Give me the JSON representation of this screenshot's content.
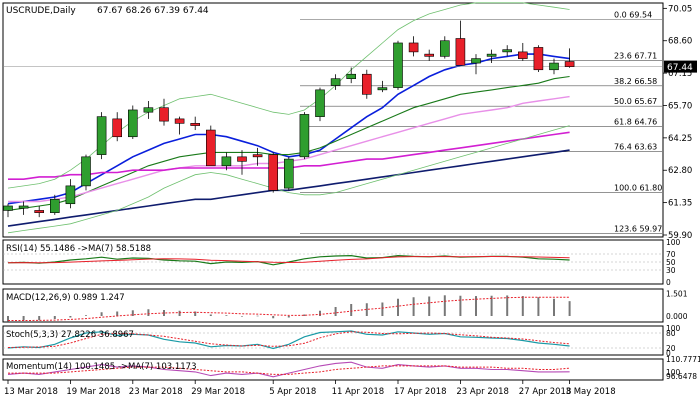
{
  "header": {
    "symbol": "USCRUDE,Daily",
    "ohlc": "67.67 68.26 67.39 67.44"
  },
  "price_axis": {
    "ticks": [
      "70.05",
      "68.60",
      "67.15",
      "65.70",
      "64.25",
      "62.80",
      "61.35",
      "59.90"
    ],
    "current_price": "67.44"
  },
  "fibonacci": [
    {
      "ratio": "0.0",
      "price": "69.54",
      "value": 69.54
    },
    {
      "ratio": "23.6",
      "price": "67.71",
      "value": 67.71
    },
    {
      "ratio": "38.2",
      "price": "66.58",
      "value": 66.58
    },
    {
      "ratio": "50.0",
      "price": "65.67",
      "value": 65.67
    },
    {
      "ratio": "61.8",
      "price": "64.76",
      "value": 64.76
    },
    {
      "ratio": "76.4",
      "price": "63.63",
      "value": 63.63
    },
    {
      "ratio": "100.0",
      "price": "61.80",
      "value": 61.8
    },
    {
      "ratio": "123.6",
      "price": "59.97",
      "value": 59.97
    }
  ],
  "x_axis": {
    "labels": [
      "13 Mar 2018",
      "19 Mar 2018",
      "23 Mar 2018",
      "29 Mar 2018",
      "5 Apr 2018",
      "11 Apr 2018",
      "17 Apr 2018",
      "23 Apr 2018",
      "27 Apr 2018",
      "3 May 2018"
    ]
  },
  "indicators": {
    "rsi": {
      "label": "RSI(14) 55.1486  ->MA(7) 58.5188",
      "levels": [
        "100",
        "70",
        "50",
        "30",
        "0"
      ]
    },
    "macd": {
      "label": "MACD(12,26,9) 0.989 1.247",
      "levels": [
        "1.501",
        "0.000"
      ]
    },
    "stoch": {
      "label": "Stoch(5,3,3) 27.8226 36.8967",
      "levels": [
        "100",
        "80",
        "20",
        "0"
      ]
    },
    "momentum": {
      "label": "Momentum(14) 100.1485  ->MA(7) 103.1173",
      "levels": [
        "110.7771",
        "100",
        "96.6478"
      ]
    }
  },
  "colors": {
    "bull": "#2f9e2f",
    "bear": "#e8202a",
    "ma_blue": "#0a1fdc",
    "ma_green": "#1a7a1a",
    "ma_magenta": "#d21fd2",
    "ma_pink": "#e890e8",
    "ma_navy": "#0f1c6e",
    "band_green": "#6fc06f"
  },
  "chart_data": {
    "type": "candlestick",
    "title": "USCRUDE,Daily",
    "ylim": [
      59.9,
      70.2
    ],
    "dates": [
      "13 Mar",
      "14 Mar",
      "15 Mar",
      "16 Mar",
      "19 Mar",
      "20 Mar",
      "21 Mar",
      "22 Mar",
      "23 Mar",
      "26 Mar",
      "27 Mar",
      "28 Mar",
      "29 Mar",
      "2 Apr",
      "3 Apr",
      "4 Apr",
      "5 Apr",
      "6 Apr",
      "9 Apr",
      "10 Apr",
      "11 Apr",
      "12 Apr",
      "13 Apr",
      "16 Apr",
      "17 Apr",
      "18 Apr",
      "19 Apr",
      "20 Apr",
      "23 Apr",
      "24 Apr",
      "25 Apr",
      "26 Apr",
      "27 Apr",
      "30 Apr",
      "1 May",
      "2 May",
      "3 May"
    ],
    "candles": [
      {
        "o": 61.0,
        "h": 61.3,
        "l": 60.7,
        "c": 61.2
      },
      {
        "o": 61.1,
        "h": 61.4,
        "l": 60.8,
        "c": 61.2
      },
      {
        "o": 61.0,
        "h": 61.2,
        "l": 60.7,
        "c": 60.9
      },
      {
        "o": 60.9,
        "h": 61.7,
        "l": 60.8,
        "c": 61.5
      },
      {
        "o": 61.3,
        "h": 62.4,
        "l": 61.1,
        "c": 62.1
      },
      {
        "o": 62.1,
        "h": 63.5,
        "l": 61.9,
        "c": 63.4
      },
      {
        "o": 63.5,
        "h": 65.4,
        "l": 63.3,
        "c": 65.2
      },
      {
        "o": 65.1,
        "h": 65.4,
        "l": 64.1,
        "c": 64.3
      },
      {
        "o": 64.3,
        "h": 65.7,
        "l": 64.2,
        "c": 65.5
      },
      {
        "o": 65.4,
        "h": 65.9,
        "l": 65.1,
        "c": 65.6
      },
      {
        "o": 65.6,
        "h": 66.0,
        "l": 64.8,
        "c": 65.0
      },
      {
        "o": 65.1,
        "h": 65.2,
        "l": 64.4,
        "c": 64.9
      },
      {
        "o": 64.9,
        "h": 65.2,
        "l": 64.6,
        "c": 64.8
      },
      {
        "o": 64.6,
        "h": 64.8,
        "l": 63.0,
        "c": 63.0
      },
      {
        "o": 63.0,
        "h": 63.6,
        "l": 62.8,
        "c": 63.4
      },
      {
        "o": 63.4,
        "h": 63.7,
        "l": 62.6,
        "c": 63.2
      },
      {
        "o": 63.5,
        "h": 63.8,
        "l": 63.0,
        "c": 63.4
      },
      {
        "o": 63.5,
        "h": 63.6,
        "l": 61.8,
        "c": 61.9
      },
      {
        "o": 62.0,
        "h": 63.4,
        "l": 61.9,
        "c": 63.3
      },
      {
        "o": 63.4,
        "h": 65.4,
        "l": 63.3,
        "c": 65.3
      },
      {
        "o": 65.2,
        "h": 66.5,
        "l": 65.0,
        "c": 66.4
      },
      {
        "o": 66.6,
        "h": 67.1,
        "l": 66.4,
        "c": 66.9
      },
      {
        "o": 66.9,
        "h": 67.4,
        "l": 66.7,
        "c": 67.1
      },
      {
        "o": 67.1,
        "h": 67.3,
        "l": 66.0,
        "c": 66.2
      },
      {
        "o": 66.4,
        "h": 66.8,
        "l": 66.3,
        "c": 66.5
      },
      {
        "o": 66.5,
        "h": 68.6,
        "l": 66.4,
        "c": 68.5
      },
      {
        "o": 68.5,
        "h": 68.8,
        "l": 67.9,
        "c": 68.1
      },
      {
        "o": 68.0,
        "h": 68.2,
        "l": 67.7,
        "c": 67.9
      },
      {
        "o": 67.9,
        "h": 68.8,
        "l": 67.8,
        "c": 68.6
      },
      {
        "o": 68.7,
        "h": 69.5,
        "l": 67.5,
        "c": 67.5
      },
      {
        "o": 67.6,
        "h": 68.0,
        "l": 67.1,
        "c": 67.8
      },
      {
        "o": 67.9,
        "h": 68.2,
        "l": 67.6,
        "c": 68.0
      },
      {
        "o": 68.1,
        "h": 68.4,
        "l": 67.9,
        "c": 68.2
      },
      {
        "o": 68.1,
        "h": 68.5,
        "l": 67.7,
        "c": 67.8
      },
      {
        "o": 68.3,
        "h": 68.4,
        "l": 67.2,
        "c": 67.3
      },
      {
        "o": 67.3,
        "h": 67.8,
        "l": 67.1,
        "c": 67.6
      },
      {
        "o": 67.67,
        "h": 68.26,
        "l": 67.39,
        "c": 67.44
      }
    ],
    "series": [
      {
        "key": "ma_blue",
        "values": [
          61.3,
          61.4,
          61.5,
          61.6,
          61.8,
          62.2,
          62.6,
          63.0,
          63.4,
          63.7,
          64.0,
          64.2,
          64.4,
          64.4,
          64.3,
          64.1,
          63.9,
          63.6,
          63.4,
          63.5,
          63.7,
          64.2,
          64.7,
          65.2,
          65.6,
          66.2,
          66.6,
          67.0,
          67.3,
          67.5,
          67.6,
          67.8,
          67.9,
          68.0,
          68.0,
          67.9,
          67.8
        ]
      },
      {
        "key": "ma_green",
        "values": [
          61.0,
          61.1,
          61.2,
          61.3,
          61.5,
          61.8,
          62.1,
          62.4,
          62.7,
          63.0,
          63.2,
          63.4,
          63.5,
          63.6,
          63.6,
          63.6,
          63.6,
          63.5,
          63.5,
          63.6,
          63.8,
          64.1,
          64.4,
          64.7,
          65.0,
          65.3,
          65.6,
          65.8,
          66.0,
          66.2,
          66.3,
          66.4,
          66.5,
          66.6,
          66.7,
          66.9,
          67.0
        ]
      },
      {
        "key": "ma_pink",
        "values": [
          61.4,
          61.4,
          61.4,
          61.5,
          61.6,
          61.8,
          62.0,
          62.2,
          62.4,
          62.6,
          62.8,
          62.9,
          63.0,
          63.0,
          63.0,
          63.0,
          63.1,
          63.1,
          63.2,
          63.3,
          63.5,
          63.7,
          63.9,
          64.1,
          64.3,
          64.5,
          64.7,
          64.9,
          65.1,
          65.3,
          65.4,
          65.5,
          65.6,
          65.8,
          65.9,
          66.0,
          66.1
        ]
      },
      {
        "key": "ma_magenta",
        "values": [
          62.4,
          62.4,
          62.5,
          62.5,
          62.6,
          62.6,
          62.7,
          62.7,
          62.8,
          62.8,
          62.8,
          62.9,
          62.9,
          62.9,
          62.9,
          62.9,
          62.9,
          62.9,
          62.9,
          63.0,
          63.0,
          63.1,
          63.2,
          63.3,
          63.3,
          63.4,
          63.5,
          63.6,
          63.7,
          63.8,
          63.9,
          64.0,
          64.1,
          64.2,
          64.3,
          64.4,
          64.5
        ]
      },
      {
        "key": "ma_navy",
        "values": [
          60.3,
          60.4,
          60.5,
          60.6,
          60.7,
          60.8,
          60.9,
          61.0,
          61.1,
          61.2,
          61.3,
          61.4,
          61.5,
          61.5,
          61.6,
          61.7,
          61.8,
          61.9,
          61.9,
          62.0,
          62.1,
          62.2,
          62.3,
          62.4,
          62.5,
          62.6,
          62.7,
          62.8,
          62.9,
          63.0,
          63.1,
          63.2,
          63.3,
          63.4,
          63.5,
          63.6,
          63.7
        ]
      },
      {
        "key": "band_upper",
        "values": [
          62.0,
          62.1,
          62.2,
          62.4,
          62.8,
          63.3,
          63.9,
          64.5,
          65.0,
          65.4,
          65.7,
          66.0,
          66.1,
          66.2,
          66.0,
          65.8,
          65.6,
          65.4,
          65.3,
          65.5,
          66.0,
          66.6,
          67.3,
          67.9,
          68.5,
          69.1,
          69.5,
          69.8,
          70.0,
          70.2,
          70.3,
          70.3,
          70.3,
          70.3,
          70.2,
          70.1,
          70.0
        ]
      },
      {
        "key": "band_lower",
        "values": [
          60.0,
          60.1,
          60.2,
          60.3,
          60.4,
          60.6,
          60.8,
          61.0,
          61.3,
          61.6,
          62.0,
          62.3,
          62.6,
          62.7,
          62.6,
          62.4,
          62.2,
          62.0,
          61.8,
          61.7,
          61.7,
          61.8,
          62.0,
          62.2,
          62.4,
          62.6,
          62.8,
          63.0,
          63.2,
          63.4,
          63.6,
          63.8,
          64.0,
          64.2,
          64.4,
          64.6,
          64.8
        ]
      }
    ],
    "rsi": [
      48,
      49,
      47,
      50,
      55,
      58,
      62,
      57,
      60,
      59,
      55,
      53,
      52,
      46,
      50,
      49,
      51,
      43,
      50,
      58,
      63,
      65,
      66,
      60,
      61,
      66,
      64,
      63,
      65,
      62,
      63,
      64,
      64,
      62,
      58,
      57,
      55
    ],
    "macd_hist": [
      -0.35,
      -0.3,
      -0.28,
      -0.2,
      -0.1,
      0.05,
      0.25,
      0.3,
      0.38,
      0.45,
      0.4,
      0.35,
      0.3,
      0.1,
      0.05,
      0.0,
      0.02,
      -0.15,
      -0.1,
      0.1,
      0.35,
      0.6,
      0.8,
      0.85,
      0.9,
      1.15,
      1.25,
      1.3,
      1.38,
      1.35,
      1.33,
      1.35,
      1.37,
      1.33,
      1.25,
      1.15,
      0.99
    ],
    "macd_signal": [
      -0.3,
      -0.3,
      -0.29,
      -0.27,
      -0.23,
      -0.17,
      -0.08,
      0.0,
      0.08,
      0.15,
      0.2,
      0.23,
      0.25,
      0.22,
      0.19,
      0.15,
      0.13,
      0.08,
      0.04,
      0.05,
      0.11,
      0.21,
      0.33,
      0.44,
      0.53,
      0.66,
      0.78,
      0.88,
      0.98,
      1.06,
      1.12,
      1.17,
      1.22,
      1.25,
      1.25,
      1.25,
      1.247
    ],
    "stoch_k": [
      20,
      25,
      22,
      35,
      60,
      80,
      85,
      70,
      75,
      72,
      55,
      45,
      40,
      25,
      30,
      28,
      35,
      18,
      35,
      65,
      82,
      85,
      88,
      75,
      72,
      85,
      80,
      75,
      78,
      65,
      63,
      60,
      58,
      50,
      40,
      35,
      28
    ],
    "stoch_d": [
      22,
      23,
      24,
      27,
      40,
      58,
      75,
      78,
      77,
      72,
      67,
      57,
      47,
      37,
      32,
      28,
      31,
      27,
      29,
      39,
      61,
      77,
      85,
      83,
      78,
      77,
      79,
      80,
      78,
      73,
      69,
      63,
      60,
      56,
      49,
      42,
      37
    ],
    "momentum": [
      98,
      99,
      98,
      100,
      102,
      104,
      106,
      104,
      105,
      104,
      102,
      101,
      100,
      97,
      99,
      98,
      99,
      96,
      99,
      102,
      105,
      107,
      108,
      104,
      103,
      106,
      105,
      104,
      105,
      103,
      103,
      102,
      102,
      101,
      100,
      100,
      100.1
    ],
    "momentum_ma": [
      99,
      99,
      99,
      99,
      100,
      101,
      102,
      103,
      104,
      104,
      104,
      103,
      102,
      101,
      100,
      100,
      99,
      98,
      98,
      99,
      100,
      102,
      103,
      104,
      105,
      105,
      105,
      105,
      105,
      104,
      104,
      104,
      103,
      103,
      102,
      102,
      103.1
    ]
  }
}
